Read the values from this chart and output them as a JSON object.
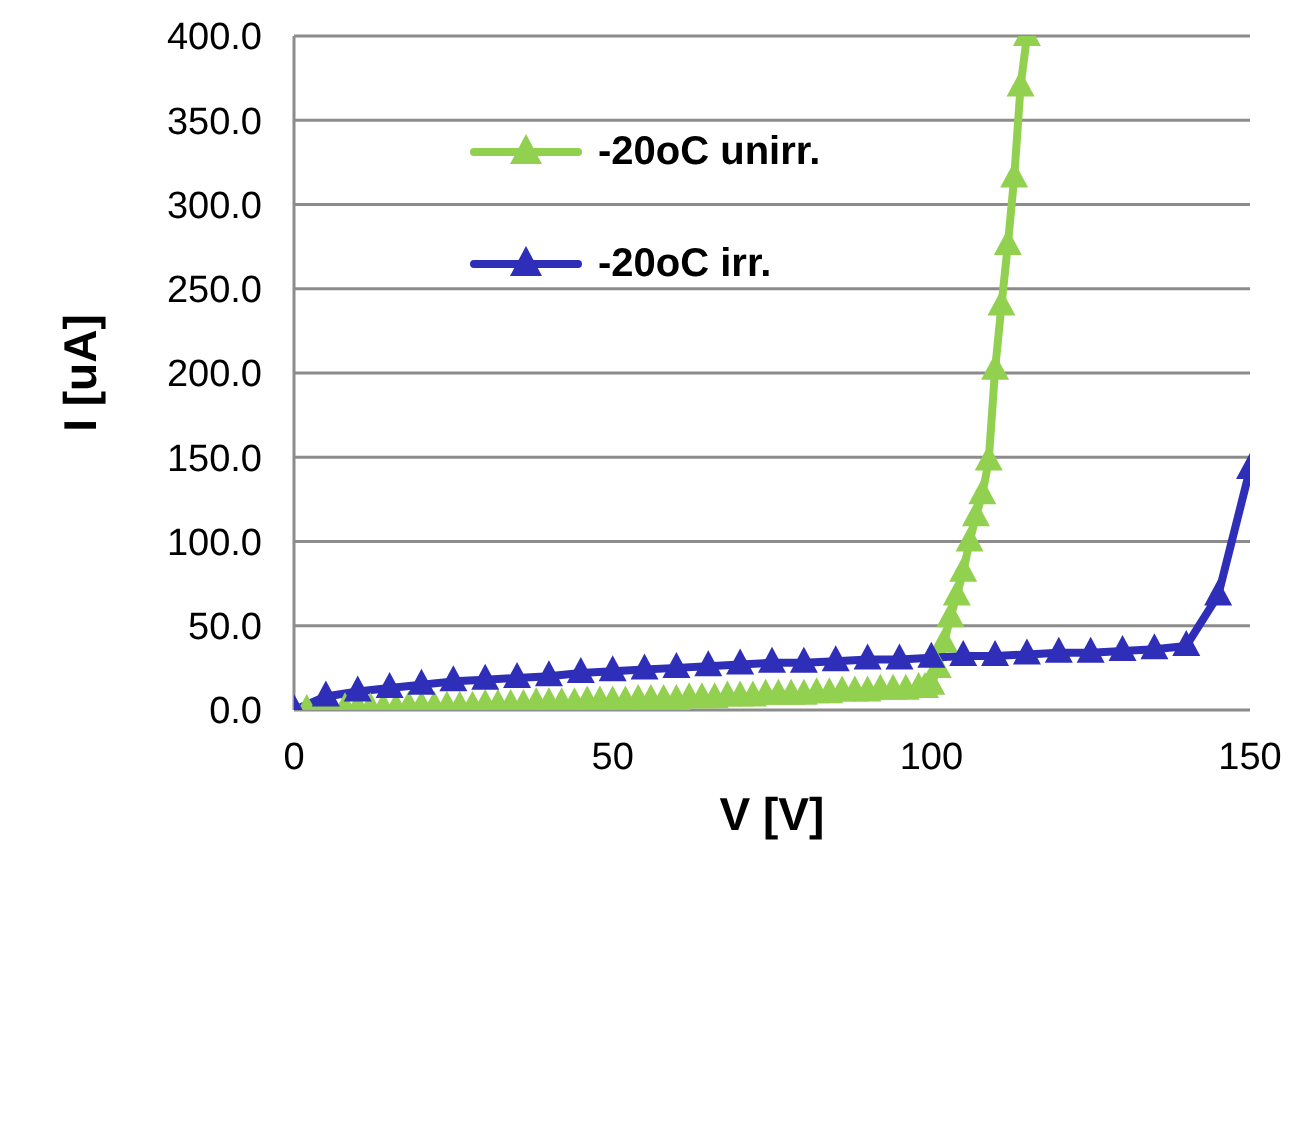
{
  "chart_data": {
    "type": "line",
    "xlabel": "V [V]",
    "ylabel": "I [uA]",
    "xlim": [
      0,
      150
    ],
    "xticks": [
      0,
      50,
      100,
      150
    ],
    "ylim": [
      0,
      400
    ],
    "yticks": [
      {
        "value": 0,
        "label": "0.0"
      },
      {
        "value": 50,
        "label": "50.0"
      },
      {
        "value": 100,
        "label": "100.0"
      },
      {
        "value": 150,
        "label": "150.0"
      },
      {
        "value": 200,
        "label": "200.0"
      },
      {
        "value": 250,
        "label": "250.0"
      },
      {
        "value": 300,
        "label": "300.0"
      },
      {
        "value": 350,
        "label": "350.0"
      },
      {
        "value": 400,
        "label": "400.0"
      }
    ],
    "grid": "y",
    "legend": "top left",
    "marker": "triangle",
    "line_style": "solid",
    "series": [
      {
        "name": "-20oC unirr.",
        "color": "#92d050",
        "x": [
          0,
          2,
          4,
          6,
          8,
          10,
          12,
          14,
          16,
          18,
          20,
          22,
          24,
          26,
          28,
          30,
          32,
          34,
          36,
          38,
          40,
          42,
          44,
          46,
          48,
          50,
          52,
          54,
          56,
          58,
          60,
          62,
          64,
          66,
          68,
          70,
          72,
          74,
          76,
          78,
          80,
          82,
          84,
          86,
          88,
          90,
          92,
          94,
          96,
          98,
          99,
          100,
          101,
          102,
          103,
          104,
          105,
          106,
          107,
          108,
          109,
          110,
          111,
          112,
          113,
          114,
          115
        ],
        "values": [
          0,
          0,
          0,
          0,
          1,
          1,
          1,
          1,
          1,
          2,
          2,
          2,
          2,
          2,
          2,
          3,
          3,
          3,
          3,
          4,
          4,
          4,
          4,
          5,
          5,
          5,
          5,
          6,
          6,
          6,
          6,
          7,
          7,
          7,
          8,
          8,
          8,
          9,
          9,
          9,
          9,
          10,
          10,
          11,
          11,
          11,
          12,
          12,
          12,
          13,
          13,
          15,
          25,
          40,
          55,
          68,
          82,
          100,
          115,
          128,
          148,
          202,
          240,
          276,
          316,
          370,
          400
        ]
      },
      {
        "name": "-20oC irr.",
        "color": "#2e2eb8",
        "x": [
          0,
          5,
          10,
          15,
          20,
          25,
          30,
          35,
          40,
          45,
          50,
          55,
          60,
          65,
          70,
          75,
          80,
          85,
          90,
          95,
          100,
          105,
          110,
          115,
          120,
          125,
          130,
          135,
          140,
          145,
          150
        ],
        "values": [
          0,
          8,
          11,
          13,
          15,
          17,
          18,
          19,
          20,
          22,
          23,
          24,
          25,
          26,
          27,
          28,
          28,
          29,
          30,
          30,
          31,
          32,
          32,
          33,
          34,
          34,
          35,
          36,
          38,
          68,
          143
        ]
      }
    ]
  }
}
